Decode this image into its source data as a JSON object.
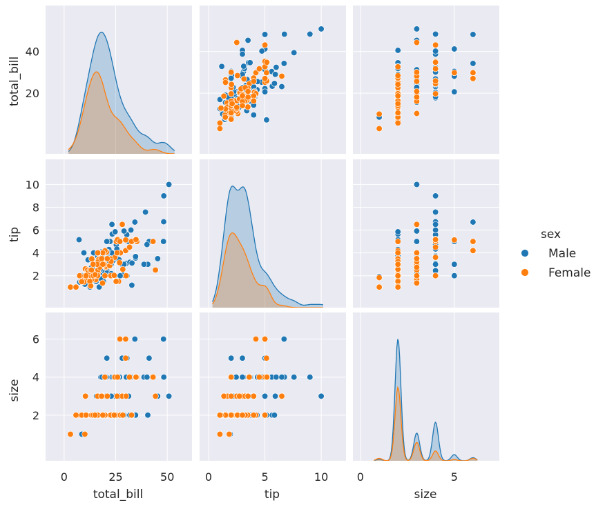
{
  "chart_data": {
    "type": "scatter",
    "subtype": "pairplot",
    "variables": [
      "total_bill",
      "tip",
      "size"
    ],
    "hue": "sex",
    "legend": {
      "title": "sex",
      "placement": "right",
      "entries": [
        {
          "label": "Male",
          "color": "#1f77b4"
        },
        {
          "label": "Female",
          "color": "#ff7f0e"
        }
      ]
    },
    "axes": {
      "total_bill": {
        "label": "total_bill",
        "range": [
          -9,
          62
        ],
        "ticks": [
          0,
          25,
          50
        ],
        "ytick_labels": [
          20,
          40
        ],
        "diag_range": [
          2,
          54
        ]
      },
      "tip": {
        "label": "tip",
        "range": [
          -0.8,
          12.2
        ],
        "ticks": [
          0,
          5,
          10
        ],
        "ytick_labels": [
          2,
          4,
          6,
          8,
          10
        ],
        "diag_range": [
          0.3,
          10.2
        ]
      },
      "size": {
        "label": "size",
        "range": [
          -0.4,
          7.4
        ],
        "ticks": [
          0,
          5
        ],
        "ytick_labels": [
          2,
          4,
          6
        ],
        "diag_range": [
          0.7,
          6.25
        ]
      }
    },
    "grid": true,
    "background": "#eaeaf2",
    "colors": {
      "Male": "#1f77b4",
      "Female": "#ff7f0e"
    },
    "kde_peaks": {
      "total_bill": {
        "Male": 0.046,
        "Female": 0.031
      },
      "tip": {
        "Male": 0.39,
        "Female": 0.24
      },
      "size": {
        "Male": 0.34,
        "Female": 0.205
      }
    },
    "points": {
      "Male": [
        [
          16.99,
          1.01,
          2
        ],
        [
          10.34,
          1.66,
          3
        ],
        [
          21.01,
          3.5,
          3
        ],
        [
          23.68,
          3.31,
          2
        ],
        [
          25.29,
          4.71,
          4
        ],
        [
          8.77,
          2.0,
          2
        ],
        [
          26.88,
          3.12,
          4
        ],
        [
          15.04,
          1.96,
          2
        ],
        [
          14.78,
          3.23,
          2
        ],
        [
          10.27,
          1.71,
          2
        ],
        [
          15.42,
          1.57,
          2
        ],
        [
          18.43,
          3.0,
          4
        ],
        [
          21.58,
          3.92,
          2
        ],
        [
          16.29,
          3.71,
          3
        ],
        [
          20.65,
          3.35,
          3
        ],
        [
          17.92,
          4.08,
          2
        ],
        [
          39.42,
          7.58,
          4
        ],
        [
          19.82,
          3.18,
          2
        ],
        [
          17.81,
          2.34,
          4
        ],
        [
          13.37,
          2.0,
          2
        ],
        [
          12.69,
          2.0,
          2
        ],
        [
          21.7,
          4.3,
          2
        ],
        [
          9.55,
          1.45,
          2
        ],
        [
          18.35,
          2.5,
          4
        ],
        [
          15.06,
          3.0,
          2
        ],
        [
          20.69,
          2.45,
          4
        ],
        [
          17.78,
          3.27,
          2
        ],
        [
          24.06,
          3.6,
          3
        ],
        [
          16.31,
          2.0,
          3
        ],
        [
          18.69,
          2.31,
          3
        ],
        [
          31.27,
          5.0,
          3
        ],
        [
          16.04,
          2.24,
          3
        ],
        [
          17.46,
          2.54,
          2
        ],
        [
          13.94,
          3.06,
          2
        ],
        [
          9.68,
          1.32,
          2
        ],
        [
          30.4,
          5.6,
          4
        ],
        [
          18.29,
          3.0,
          2
        ],
        [
          22.23,
          5.0,
          2
        ],
        [
          32.4,
          6.0,
          4
        ],
        [
          28.55,
          2.05,
          3
        ],
        [
          18.04,
          3.0,
          2
        ],
        [
          12.54,
          2.5,
          2
        ],
        [
          20.29,
          2.75,
          2
        ],
        [
          19.65,
          3.0,
          2
        ],
        [
          15.77,
          2.23,
          2
        ],
        [
          39.42,
          7.58,
          4
        ],
        [
          19.08,
          1.5,
          2
        ],
        [
          22.76,
          3.0,
          2
        ],
        [
          48.27,
          6.73,
          4
        ],
        [
          20.08,
          3.15,
          3
        ],
        [
          16.0,
          2.0,
          2
        ],
        [
          34.81,
          5.2,
          4
        ],
        [
          25.0,
          3.75,
          4
        ],
        [
          18.78,
          3.0,
          2
        ],
        [
          12.9,
          1.1,
          2
        ],
        [
          28.15,
          3.0,
          5
        ],
        [
          11.59,
          1.5,
          2
        ],
        [
          7.74,
          1.44,
          2
        ],
        [
          30.14,
          3.09,
          4
        ],
        [
          20.23,
          2.01,
          2
        ],
        [
          13.81,
          2.0,
          2
        ],
        [
          11.02,
          1.98,
          2
        ],
        [
          18.28,
          4.0,
          2
        ],
        [
          15.81,
          3.16,
          2
        ],
        [
          7.25,
          5.15,
          2
        ],
        [
          31.85,
          3.18,
          2
        ],
        [
          16.82,
          4.0,
          2
        ],
        [
          32.9,
          3.11,
          2
        ],
        [
          17.89,
          2.0,
          2
        ],
        [
          14.48,
          2.0,
          2
        ],
        [
          34.63,
          3.55,
          2
        ],
        [
          34.65,
          3.68,
          4
        ],
        [
          23.33,
          5.65,
          2
        ],
        [
          45.35,
          3.5,
          3
        ],
        [
          23.17,
          6.5,
          4
        ],
        [
          40.55,
          3.0,
          2
        ],
        [
          20.69,
          5.0,
          5
        ],
        [
          30.46,
          2.0,
          5
        ],
        [
          23.1,
          4.0,
          3
        ],
        [
          24.01,
          2.0,
          4
        ],
        [
          15.69,
          3.0,
          3
        ],
        [
          11.61,
          3.39,
          2
        ],
        [
          10.77,
          1.47,
          2
        ],
        [
          15.53,
          3.0,
          2
        ],
        [
          10.07,
          1.25,
          2
        ],
        [
          12.6,
          1.0,
          2
        ],
        [
          32.83,
          1.17,
          2
        ],
        [
          29.03,
          5.92,
          3
        ],
        [
          17.82,
          1.75,
          2
        ],
        [
          50.81,
          10.0,
          3
        ],
        [
          15.48,
          2.02,
          2
        ],
        [
          9.6,
          4.0,
          2
        ],
        [
          34.3,
          6.7,
          6
        ],
        [
          41.19,
          5.0,
          5
        ],
        [
          28.44,
          2.56,
          2
        ],
        [
          26.59,
          3.41,
          3
        ],
        [
          38.73,
          3.0,
          4
        ],
        [
          24.27,
          2.03,
          2
        ],
        [
          20.76,
          2.24,
          2
        ],
        [
          40.17,
          4.73,
          4
        ],
        [
          48.17,
          5.0,
          6
        ],
        [
          25.56,
          4.34,
          4
        ],
        [
          48.33,
          9.0,
          4
        ],
        [
          20.45,
          3.0,
          4
        ],
        [
          13.28,
          2.72,
          2
        ],
        [
          24.71,
          5.85,
          2
        ],
        [
          21.16,
          3.0,
          2
        ],
        [
          28.97,
          3.0,
          2
        ],
        [
          22.49,
          3.5,
          2
        ],
        [
          24.55,
          2.0,
          4
        ],
        [
          25.21,
          1.5,
          2
        ],
        [
          18.24,
          3.76,
          2
        ],
        [
          14.31,
          4.0,
          2
        ],
        [
          11.38,
          2.0,
          2
        ],
        [
          7.56,
          1.44,
          2
        ],
        [
          8.58,
          1.92,
          1
        ],
        [
          14.26,
          2.5,
          2
        ],
        [
          20.49,
          4.06,
          2
        ],
        [
          21.5,
          3.5,
          2
        ],
        [
          22.82,
          2.18,
          3
        ],
        [
          27.18,
          2.0,
          2
        ],
        [
          19.77,
          2.0,
          4
        ],
        [
          25.89,
          5.16,
          4
        ],
        [
          15.53,
          1.5,
          2
        ],
        [
          13.0,
          2.0,
          2
        ],
        [
          15.95,
          2.0,
          2
        ],
        [
          22.42,
          3.48,
          2
        ],
        [
          16.58,
          4.0,
          2
        ],
        [
          20.92,
          4.08,
          2
        ]
      ],
      "Female": [
        [
          24.59,
          3.61,
          4
        ],
        [
          35.26,
          5.0,
          4
        ],
        [
          14.83,
          3.02,
          2
        ],
        [
          10.33,
          1.67,
          3
        ],
        [
          16.97,
          3.5,
          3
        ],
        [
          20.29,
          2.75,
          2
        ],
        [
          15.77,
          2.23,
          2
        ],
        [
          19.65,
          3.0,
          2
        ],
        [
          10.29,
          2.6,
          2
        ],
        [
          34.81,
          5.2,
          4
        ],
        [
          26.41,
          1.5,
          2
        ],
        [
          16.45,
          2.47,
          2
        ],
        [
          3.07,
          1.0,
          1
        ],
        [
          17.07,
          3.0,
          3
        ],
        [
          26.86,
          3.14,
          2
        ],
        [
          25.28,
          5.0,
          2
        ],
        [
          14.73,
          2.2,
          2
        ],
        [
          10.07,
          1.83,
          1
        ],
        [
          44.3,
          2.5,
          3
        ],
        [
          22.42,
          3.48,
          2
        ],
        [
          15.36,
          1.64,
          2
        ],
        [
          20.49,
          4.06,
          2
        ],
        [
          25.21,
          1.5,
          2
        ],
        [
          9.78,
          1.73,
          2
        ],
        [
          7.51,
          2.0,
          2
        ],
        [
          18.64,
          1.36,
          3
        ],
        [
          11.87,
          1.63,
          2
        ],
        [
          16.43,
          2.3,
          2
        ],
        [
          8.35,
          1.5,
          2
        ],
        [
          18.64,
          1.36,
          3
        ],
        [
          13.42,
          1.68,
          2
        ],
        [
          16.27,
          2.5,
          2
        ],
        [
          10.09,
          2.0,
          2
        ],
        [
          20.27,
          2.83,
          2
        ],
        [
          11.35,
          2.5,
          2
        ],
        [
          15.38,
          3.0,
          2
        ],
        [
          43.11,
          5.0,
          4
        ],
        [
          13.0,
          2.0,
          2
        ],
        [
          12.74,
          2.01,
          2
        ],
        [
          13.0,
          2.0,
          2
        ],
        [
          16.4,
          2.5,
          2
        ],
        [
          17.47,
          3.5,
          2
        ],
        [
          28.17,
          6.5,
          3
        ],
        [
          10.59,
          1.61,
          2
        ],
        [
          29.8,
          4.2,
          6
        ],
        [
          19.44,
          3.0,
          2
        ],
        [
          11.69,
          2.31,
          2
        ],
        [
          16.66,
          3.4,
          2
        ],
        [
          22.12,
          2.88,
          2
        ],
        [
          25.89,
          5.16,
          4
        ],
        [
          27.28,
          4.0,
          2
        ],
        [
          27.05,
          5.0,
          6
        ],
        [
          9.55,
          1.45,
          2
        ],
        [
          14.52,
          2.0,
          2
        ],
        [
          8.52,
          1.48,
          2
        ],
        [
          14.15,
          2.0,
          2
        ],
        [
          22.75,
          3.25,
          2
        ],
        [
          12.66,
          2.5,
          2
        ],
        [
          13.42,
          3.48,
          2
        ],
        [
          18.26,
          3.25,
          2
        ],
        [
          16.47,
          3.23,
          3
        ],
        [
          12.46,
          1.5,
          2
        ],
        [
          30.06,
          2.0,
          3
        ],
        [
          15.98,
          2.03,
          2
        ],
        [
          17.26,
          2.74,
          3
        ],
        [
          25.71,
          4.0,
          3
        ],
        [
          16.21,
          2.0,
          3
        ],
        [
          15.98,
          3.0,
          2
        ],
        [
          12.9,
          1.1,
          2
        ],
        [
          13.27,
          2.5,
          2
        ],
        [
          32.68,
          5.0,
          2
        ],
        [
          5.75,
          1.0,
          2
        ],
        [
          19.81,
          4.19,
          2
        ],
        [
          18.71,
          4.0,
          3
        ],
        [
          31.71,
          4.5,
          4
        ],
        [
          19.77,
          2.0,
          4
        ],
        [
          16.32,
          4.0,
          2
        ],
        [
          22.67,
          2.0,
          2
        ],
        [
          14.05,
          3.0,
          2
        ],
        [
          34.83,
          5.17,
          4
        ],
        [
          24.27,
          2.03,
          2
        ],
        [
          20.9,
          3.5,
          3
        ],
        [
          18.15,
          3.5,
          3
        ],
        [
          15.01,
          2.09,
          2
        ],
        [
          29.85,
          5.14,
          5
        ],
        [
          28.44,
          2.56,
          2
        ],
        [
          10.63,
          2.0,
          2
        ],
        [
          18.78,
          3.0,
          2
        ]
      ]
    }
  }
}
